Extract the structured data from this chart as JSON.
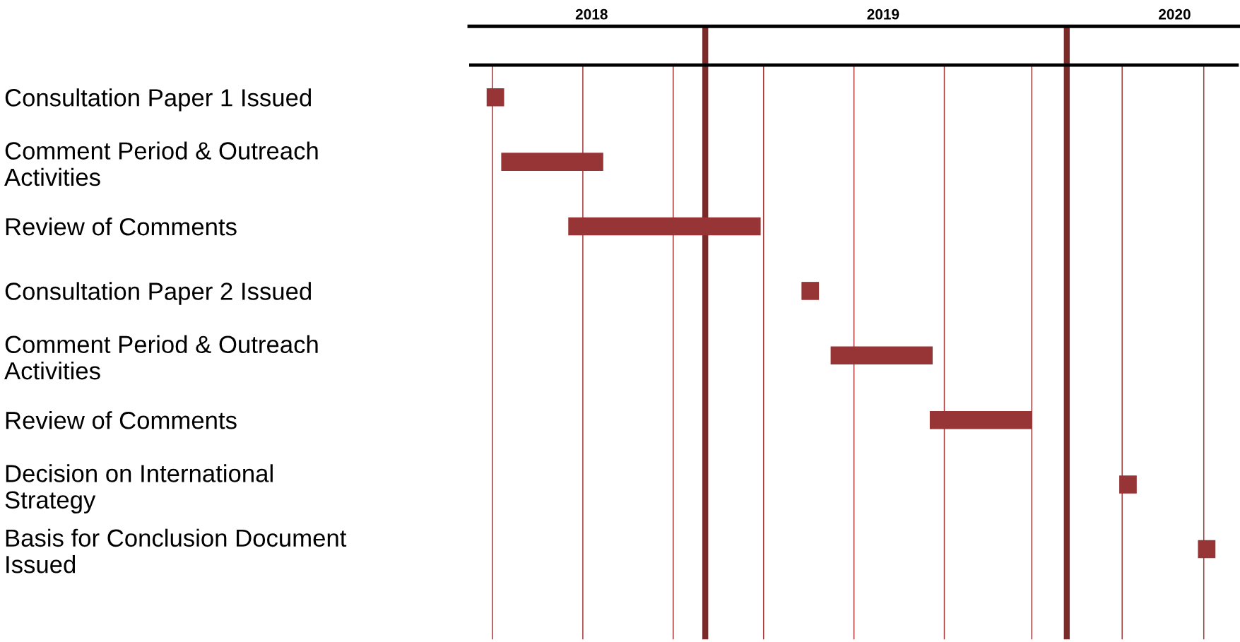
{
  "chart_data": {
    "type": "bar",
    "orientation": "horizontal",
    "categories": [
      "Consultation Paper 1 Issued",
      "Comment Period & Outreach\nActivities",
      "Review of Comments",
      "Consultation Paper 2 Issued",
      "Comment Period & Outreach\nActivities",
      "Review of Comments",
      "Decision on International\nStrategy",
      "Basis for Conclusion Document\nIssued"
    ],
    "base": [
      2017.64,
      2017.69,
      2017.92,
      2018.72,
      2018.82,
      2019.16,
      2019.81,
      2020.08
    ],
    "values": [
      0.06,
      0.35,
      0.66,
      0.06,
      0.35,
      0.35,
      0.06,
      0.06
    ],
    "color": "#973536",
    "xlim": [
      2017.58,
      2020.22
    ],
    "xticks": [
      2018,
      2019,
      2020
    ],
    "ref_lines": [
      {
        "axis": "x",
        "value": 2017.66
      },
      {
        "axis": "x",
        "value": 2017.97
      },
      {
        "axis": "x",
        "value": 2018.28
      },
      {
        "axis": "x",
        "value": 2018.39,
        "color": "#7b2a2a"
      },
      {
        "axis": "x",
        "value": 2018.59
      },
      {
        "axis": "x",
        "value": 2018.9
      },
      {
        "axis": "x",
        "value": 2019.21
      },
      {
        "axis": "x",
        "value": 2019.51
      },
      {
        "axis": "x",
        "value": 2019.63,
        "color": "#7b2a2a"
      },
      {
        "axis": "x",
        "value": 2019.82
      },
      {
        "axis": "x",
        "value": 2020.1
      }
    ]
  }
}
